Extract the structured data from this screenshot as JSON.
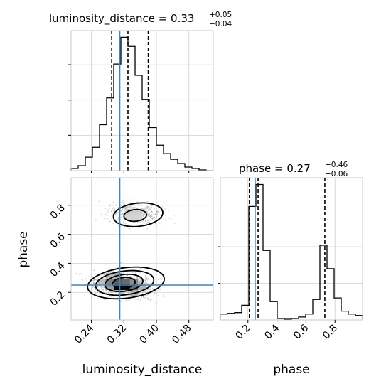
{
  "chart_data": {
    "type": "corner",
    "parameters": [
      "luminosity_distance",
      "phase"
    ],
    "colors": {
      "truth": "#4682b4",
      "histogram": "#000000",
      "quantiles": "#000000",
      "samples": "#9a9a9a",
      "density": "#000000"
    },
    "grid": true,
    "luminosity_distance": {
      "title": "luminosity_distance = 0.33",
      "title_plus": "+0.05",
      "title_minus": "−0.04",
      "xlabel": "luminosity_distance",
      "xlim": [
        0.19,
        0.54
      ],
      "ticks": [
        0.24,
        0.32,
        0.4,
        0.48
      ],
      "tick_labels": [
        "0.24",
        "0.32",
        "0.40",
        "0.48"
      ],
      "median": 0.33,
      "quantiles": [
        0.29,
        0.33,
        0.38
      ],
      "truth": 0.31,
      "hist_edges": [
        0.19,
        0.2075,
        0.225,
        0.2425,
        0.26,
        0.2775,
        0.295,
        0.3125,
        0.33,
        0.3475,
        0.365,
        0.3825,
        0.4,
        0.4175,
        0.435,
        0.4525,
        0.47,
        0.4875,
        0.505,
        0.5225,
        0.54
      ],
      "hist_counts": [
        3,
        7,
        19,
        33,
        65,
        103,
        151,
        189,
        176,
        135,
        101,
        61,
        36,
        24,
        16,
        10,
        5,
        3,
        1,
        0
      ]
    },
    "phase": {
      "title": "phase = 0.27",
      "title_plus": "+0.46",
      "title_minus": "−0.06",
      "xlabel": "phase",
      "ylabel": "phase",
      "lim": [
        0.01,
        0.99
      ],
      "ticks": [
        0.2,
        0.4,
        0.6,
        0.8
      ],
      "tick_labels": [
        "0.2",
        "0.4",
        "0.6",
        "0.8"
      ],
      "median": 0.27,
      "quantiles": [
        0.21,
        0.27,
        0.73
      ],
      "truth": 0.25,
      "hist_edges": [
        0.01,
        0.059,
        0.108,
        0.157,
        0.206,
        0.255,
        0.304,
        0.353,
        0.402,
        0.451,
        0.5,
        0.549,
        0.598,
        0.647,
        0.696,
        0.745,
        0.794,
        0.843,
        0.892,
        0.941,
        0.99
      ],
      "hist_counts": [
        8,
        9,
        10,
        20,
        155,
        185,
        95,
        25,
        2,
        1,
        2,
        4,
        8,
        28,
        102,
        70,
        30,
        12,
        8,
        6
      ]
    },
    "joint": {
      "x": "luminosity_distance",
      "y": "phase",
      "modes": [
        {
          "center": [
            0.35,
            0.74
          ],
          "spread": [
            0.035,
            0.04
          ],
          "weight": 0.3
        },
        {
          "center": [
            0.32,
            0.25
          ],
          "spread": [
            0.035,
            0.04
          ],
          "weight": 0.7
        }
      ],
      "density_cells": [
        {
          "x": 0.305,
          "y": 0.235,
          "level": 1.0
        },
        {
          "x": 0.325,
          "y": 0.235,
          "level": 0.95
        },
        {
          "x": 0.345,
          "y": 0.235,
          "level": 0.55
        },
        {
          "x": 0.285,
          "y": 0.235,
          "level": 0.35
        },
        {
          "x": 0.285,
          "y": 0.275,
          "level": 0.45
        },
        {
          "x": 0.305,
          "y": 0.275,
          "level": 0.6
        },
        {
          "x": 0.325,
          "y": 0.275,
          "level": 0.55
        },
        {
          "x": 0.345,
          "y": 0.275,
          "level": 0.4
        },
        {
          "x": 0.265,
          "y": 0.275,
          "level": 0.2
        },
        {
          "x": 0.305,
          "y": 0.315,
          "level": 0.25
        },
        {
          "x": 0.285,
          "y": 0.315,
          "level": 0.2
        },
        {
          "x": 0.345,
          "y": 0.195,
          "level": 0.25
        },
        {
          "x": 0.365,
          "y": 0.235,
          "level": 0.25
        },
        {
          "x": 0.335,
          "y": 0.755,
          "level": 0.12
        },
        {
          "x": 0.355,
          "y": 0.755,
          "level": 0.12
        },
        {
          "x": 0.335,
          "y": 0.715,
          "level": 0.1
        },
        {
          "x": 0.355,
          "y": 0.715,
          "level": 0.1
        }
      ],
      "contours": [
        {
          "center": [
            0.32,
            0.265
          ],
          "radii": [
            0.028,
            0.037
          ],
          "tilt": -0.3
        },
        {
          "center": [
            0.32,
            0.265
          ],
          "radii": [
            0.047,
            0.058
          ],
          "tilt": -0.35
        },
        {
          "center": [
            0.322,
            0.265
          ],
          "radii": [
            0.072,
            0.082
          ],
          "tilt": -0.35
        },
        {
          "center": [
            0.325,
            0.265
          ],
          "radii": [
            0.095,
            0.105
          ],
          "tilt": -0.35
        },
        {
          "center": [
            0.348,
            0.73
          ],
          "radii": [
            0.028,
            0.04
          ],
          "tilt": -0.25
        },
        {
          "center": [
            0.355,
            0.735
          ],
          "radii": [
            0.061,
            0.08
          ],
          "tilt": -0.3
        }
      ]
    }
  }
}
